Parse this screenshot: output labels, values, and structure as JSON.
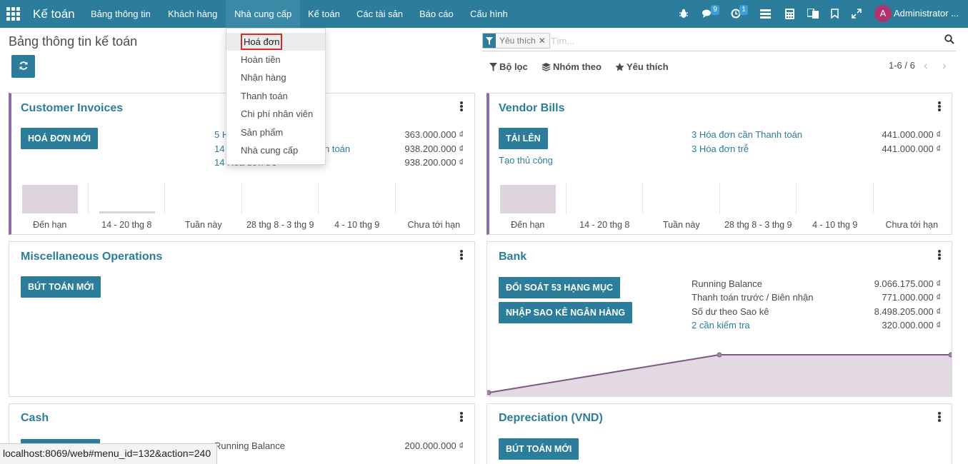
{
  "navbar": {
    "brand": "Kế toán",
    "menus": [
      "Bảng thông tin",
      "Khách hàng",
      "Nhà cung cấp",
      "Kế toán",
      "Các tài sản",
      "Báo cáo",
      "Cấu hình"
    ],
    "messages_badge": "9",
    "activities_badge": "1",
    "avatar_letter": "A",
    "user": "Administrator ..."
  },
  "dropdown": {
    "items": [
      "Hoá đơn",
      "Hoàn tiền",
      "Nhận hàng",
      "Thanh toán",
      "Chi phí nhân viên",
      "Sản phẩm",
      "Nhà cung cấp"
    ]
  },
  "control_panel": {
    "title": "Bảng thông tin kế toán",
    "facet": "Yêu thích",
    "search_placeholder": "Tìm...",
    "filters": "Bộ lọc",
    "group_by": "Nhóm theo",
    "favorites": "Yêu thích",
    "pager": "1-6 / 6"
  },
  "customer_invoices": {
    "title": "Customer Invoices",
    "button": "HOÁ ĐƠN MỚI",
    "links": [
      "5 H",
      "14",
      "14 Hóa đơn trễ"
    ],
    "link_tail": "n toán",
    "amounts": [
      "363.000.000 ₫",
      "938.200.000 ₫",
      "938.200.000 ₫"
    ],
    "chart_labels": [
      "Đến hạn",
      "14 - 20 thg 8",
      "Tuần này",
      "28 thg 8 - 3 thg 9",
      "4 - 10 thg 9",
      "Chưa tới hạn"
    ],
    "chart_values": [
      1.0,
      0.08,
      0,
      0,
      0,
      0
    ]
  },
  "vendor_bills": {
    "title": "Vendor Bills",
    "button": "TẢI LÊN",
    "manual": "Tạo thủ công",
    "links": [
      "3 Hóa đơn cần Thanh toán",
      "3 Hóa đơn trễ"
    ],
    "amounts": [
      "441.000.000 ₫",
      "441.000.000 ₫"
    ],
    "chart_labels": [
      "Đến hạn",
      "14 - 20 thg 8",
      "Tuần này",
      "28 thg 8 - 3 thg 9",
      "4 - 10 thg 9",
      "Chưa tới hạn"
    ],
    "chart_values": [
      1.0,
      0,
      0,
      0,
      0,
      0
    ]
  },
  "misc": {
    "title": "Miscellaneous Operations",
    "button": "BÚT TOÁN MỚI"
  },
  "bank": {
    "title": "Bank",
    "button_reconcile": "ĐỐI SOÁT 53 HẠNG MỤC",
    "button_import": "NHẬP SAO KÊ NGÂN HÀNG",
    "rows": [
      {
        "label": "Running Balance",
        "amount": "9.066.175.000 ₫"
      },
      {
        "label": "Thanh toán trước / Biên nhận",
        "amount": "771.000.000 ₫"
      },
      {
        "label": "Số dư theo Sao kê",
        "amount": "8.498.205.000 ₫"
      },
      {
        "label": "2 cần kiểm tra",
        "amount": "320.000.000 ₫"
      }
    ],
    "line_points": [
      0,
      1,
      1
    ]
  },
  "cash": {
    "title": "Cash",
    "row_label": "Running Balance",
    "row_amount": "200.000.000 ₫"
  },
  "depreciation": {
    "title": "Depreciation (VND)",
    "button": "BÚT TOÁN MỚI"
  },
  "statusbar": "localhost:8069/web#menu_id=132&action=240",
  "colors": {
    "primary": "#2b7d9b",
    "purple": "#8f6aa8",
    "bar": "#dcd3dc"
  }
}
